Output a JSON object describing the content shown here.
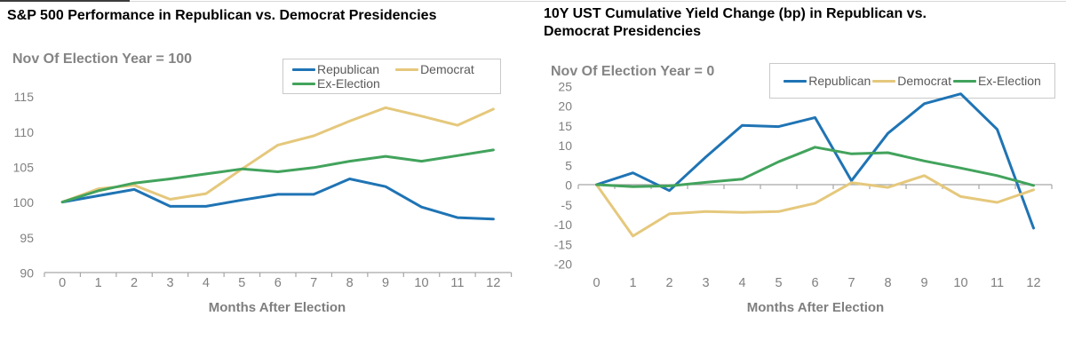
{
  "chart_data": [
    {
      "type": "line",
      "title": "S&P 500 Performance in Republican vs. Democrat Presidencies",
      "subtitle": "Nov Of Election Year = 100",
      "xlabel": "Months After Election",
      "x": [
        0,
        1,
        2,
        3,
        4,
        5,
        6,
        7,
        8,
        9,
        10,
        11,
        12
      ],
      "x_tick_labels": [
        "0",
        "1",
        "2",
        "3",
        "4",
        "5",
        "6",
        "7",
        "8",
        "9",
        "10",
        "11",
        "12"
      ],
      "ylim": [
        90,
        115
      ],
      "yticks": [
        115,
        110,
        105,
        100,
        95,
        90
      ],
      "grid": false,
      "legend_position": "top-right-two-rows",
      "series": [
        {
          "name": "Republican",
          "color": "#1f74b4",
          "values": [
            100,
            100.9,
            101.8,
            99.4,
            99.4,
            100.3,
            101.1,
            101.1,
            103.3,
            102.2,
            99.3,
            97.8,
            97.6
          ]
        },
        {
          "name": "Democrat",
          "color": "#e5c87c",
          "values": [
            100,
            101.9,
            102.4,
            100.4,
            101.2,
            104.7,
            108.1,
            109.4,
            111.5,
            113.4,
            112.2,
            110.9,
            113.2
          ]
        },
        {
          "name": "Ex-Election",
          "color": "#42a35c",
          "values": [
            100,
            101.6,
            102.7,
            103.3,
            104.0,
            104.7,
            104.3,
            104.9,
            105.8,
            106.5,
            105.8,
            106.6,
            107.4
          ]
        }
      ]
    },
    {
      "type": "line",
      "title": "10Y UST Cumulative Yield Change (bp) in Republican vs. Democrat Presidencies",
      "subtitle": "Nov Of Election Year = 0",
      "xlabel": "Months After Election",
      "x": [
        0,
        1,
        2,
        3,
        4,
        5,
        6,
        7,
        8,
        9,
        10,
        11,
        12
      ],
      "x_tick_labels": [
        "0",
        "1",
        "2",
        "3",
        "4",
        "5",
        "6",
        "7",
        "8",
        "9",
        "10",
        "11",
        "12"
      ],
      "ylim": [
        -20,
        25
      ],
      "yticks": [
        25,
        20,
        15,
        10,
        5,
        0,
        -5,
        -10,
        -15,
        -20
      ],
      "grid": false,
      "zero_axis": true,
      "legend_position": "top-right-one-row",
      "series": [
        {
          "name": "Republican",
          "color": "#1f74b4",
          "values": [
            0,
            3,
            -1.5,
            7,
            15,
            14.7,
            17,
            1,
            13,
            20.5,
            23,
            14,
            -11
          ]
        },
        {
          "name": "Democrat",
          "color": "#e5c87c",
          "values": [
            0,
            -13,
            -7.4,
            -6.8,
            -7,
            -6.8,
            -4.7,
            0.5,
            -0.7,
            2.3,
            -3,
            -4.5,
            -1.3
          ]
        },
        {
          "name": "Ex-Election",
          "color": "#42a35c",
          "values": [
            0,
            -0.5,
            -0.3,
            0.6,
            1.4,
            5.8,
            9.5,
            7.8,
            8.1,
            6,
            4.2,
            2.3,
            -0.2
          ]
        }
      ]
    }
  ],
  "style": {
    "axis_color": "#a6a6a6",
    "tick_label_color": "#7f7f7f",
    "legend_text_color": "#595959"
  }
}
